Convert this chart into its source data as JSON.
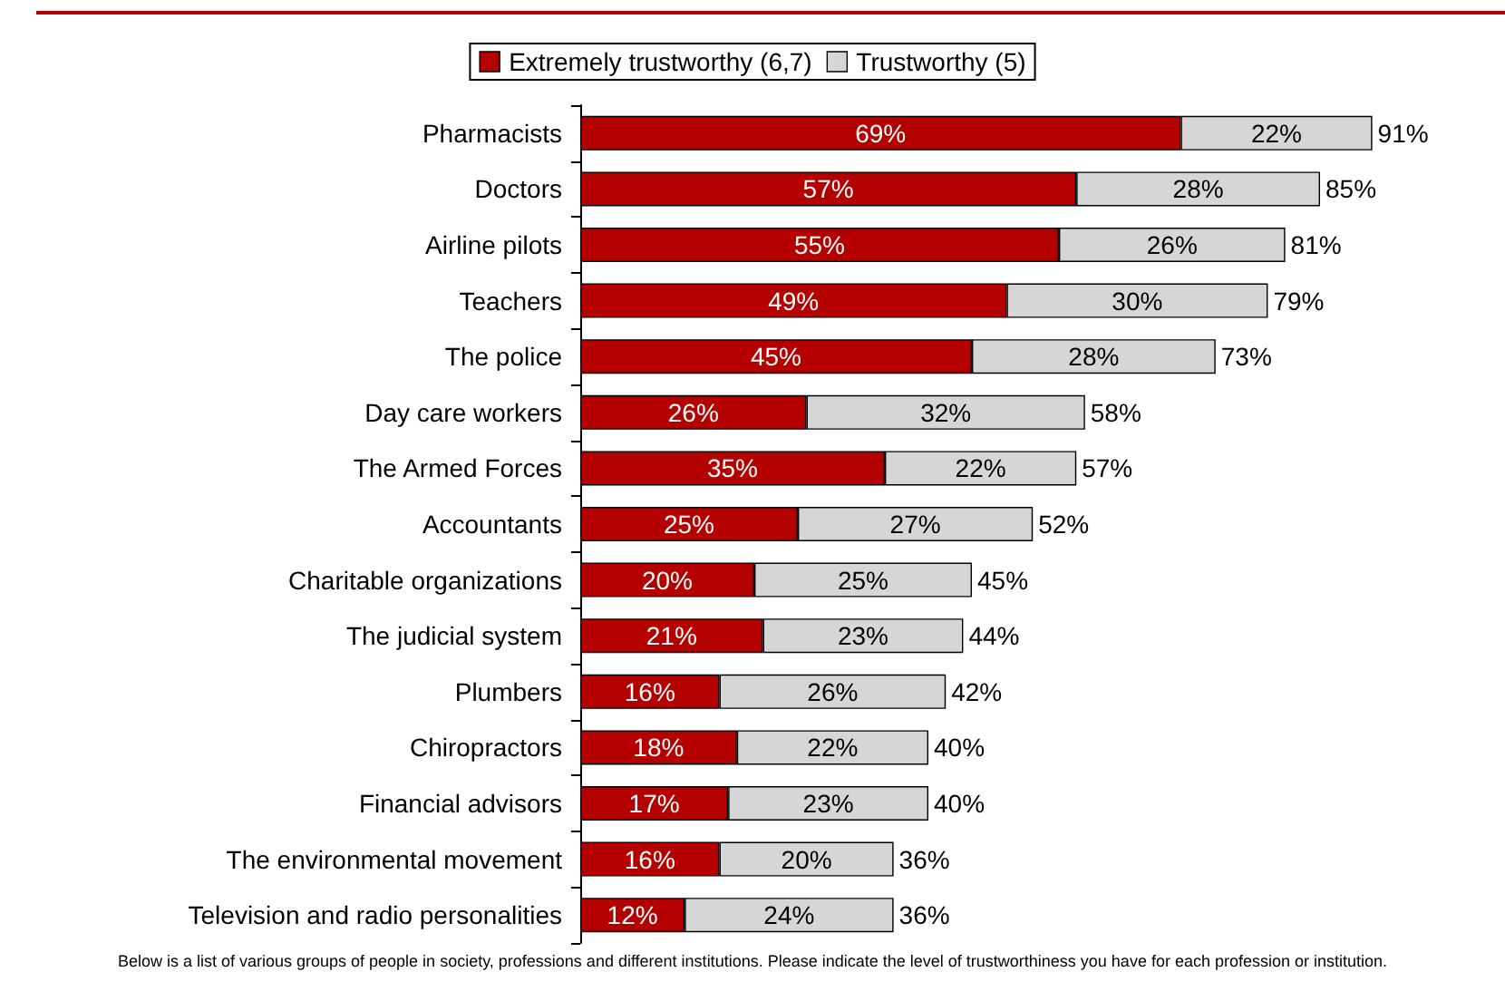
{
  "chart_data": {
    "type": "bar",
    "orientation": "horizontal",
    "stacked": true,
    "legend": "top",
    "categories": [
      "Pharmacists",
      "Doctors",
      "Airline pilots",
      "Teachers",
      "The police",
      "Day care workers",
      "The Armed Forces",
      "Accountants",
      "Charitable organizations",
      "The judicial system",
      "Plumbers",
      "Chiropractors",
      "Financial advisors",
      "The environmental movement",
      "Television and radio personalities"
    ],
    "series": [
      {
        "name": "Extremely trustworthy (6,7)",
        "color": "#b50000",
        "values": [
          69,
          57,
          55,
          49,
          45,
          26,
          35,
          25,
          20,
          21,
          16,
          18,
          17,
          16,
          12
        ],
        "value_labels": [
          "69%",
          "57%",
          "55%",
          "49%",
          "45%",
          "26%",
          "35%",
          "25%",
          "20%",
          "21%",
          "16%",
          "18%",
          "17%",
          "16%",
          "12%"
        ]
      },
      {
        "name": "Trustworthy (5)",
        "color": "#d6d6d6",
        "values": [
          22,
          28,
          26,
          30,
          28,
          32,
          22,
          27,
          25,
          23,
          26,
          22,
          23,
          20,
          24
        ],
        "value_labels": [
          "22%",
          "28%",
          "26%",
          "30%",
          "28%",
          "32%",
          "22%",
          "27%",
          "25%",
          "23%",
          "26%",
          "22%",
          "23%",
          "20%",
          "24%"
        ]
      }
    ],
    "totals": [
      "91%",
      "85%",
      "81%",
      "79%",
      "73%",
      "58%",
      "57%",
      "52%",
      "45%",
      "44%",
      "42%",
      "40%",
      "40%",
      "36%",
      "36%"
    ],
    "annotations": [
      "Below is a list of various groups of people in society, professions and different institutions.  Please indicate the level of trustworthiness you have for each profession or institution."
    ]
  }
}
